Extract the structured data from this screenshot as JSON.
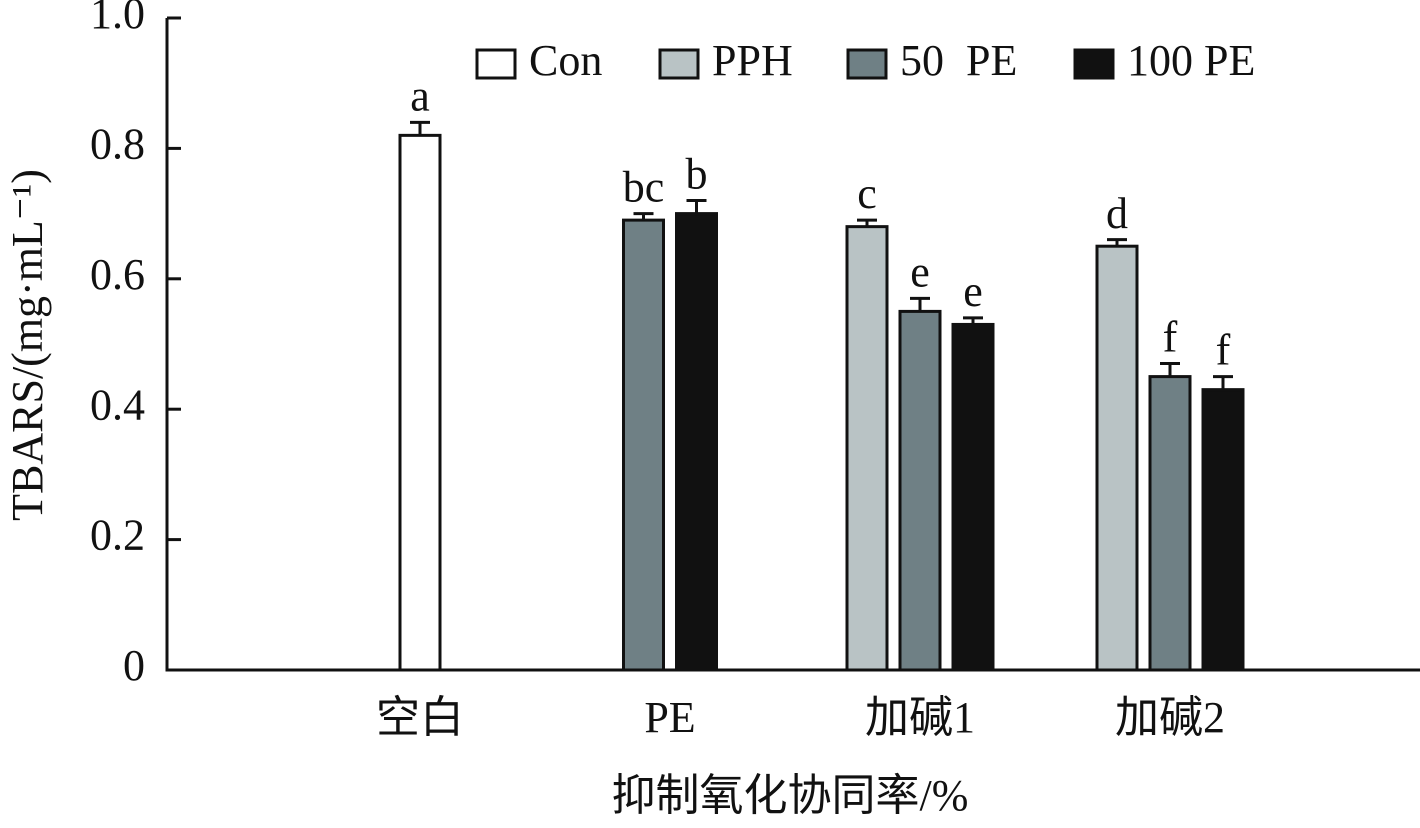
{
  "chart_data": {
    "type": "bar",
    "y_label": "TBARS/(mg·mL⁻¹)",
    "x_label": "抑制氧化协同率/%",
    "categories": [
      "空白",
      "PE",
      "加碱1",
      "加碱2"
    ],
    "series": [
      {
        "name": "Con",
        "color": "#ffffff",
        "values": [
          0.82,
          null,
          null,
          null
        ],
        "errors": [
          0.02,
          null,
          null,
          null
        ],
        "letters": [
          "a",
          null,
          null,
          null
        ]
      },
      {
        "name": "PPH",
        "color": "#b9c3c5",
        "values": [
          null,
          null,
          0.68,
          0.65
        ],
        "errors": [
          null,
          null,
          0.01,
          0.01
        ],
        "letters": [
          null,
          null,
          "c",
          "d"
        ]
      },
      {
        "name": "50  PE",
        "color": "#6f8085",
        "values": [
          null,
          0.69,
          0.55,
          0.45
        ],
        "errors": [
          null,
          0.01,
          0.02,
          0.02
        ],
        "letters": [
          null,
          "bc",
          "e",
          "f"
        ]
      },
      {
        "name": "100 PE",
        "color": "#111111",
        "values": [
          null,
          0.7,
          0.53,
          0.43
        ],
        "errors": [
          null,
          0.02,
          0.01,
          0.02
        ],
        "letters": [
          null,
          "b",
          "e",
          "f"
        ]
      }
    ],
    "ylim": [
      0,
      1
    ],
    "yticks": [
      0,
      0.2,
      0.4,
      0.6,
      0.8,
      {
        "value": 1,
        "label": "1.0"
      }
    ],
    "legend": "top-right"
  }
}
